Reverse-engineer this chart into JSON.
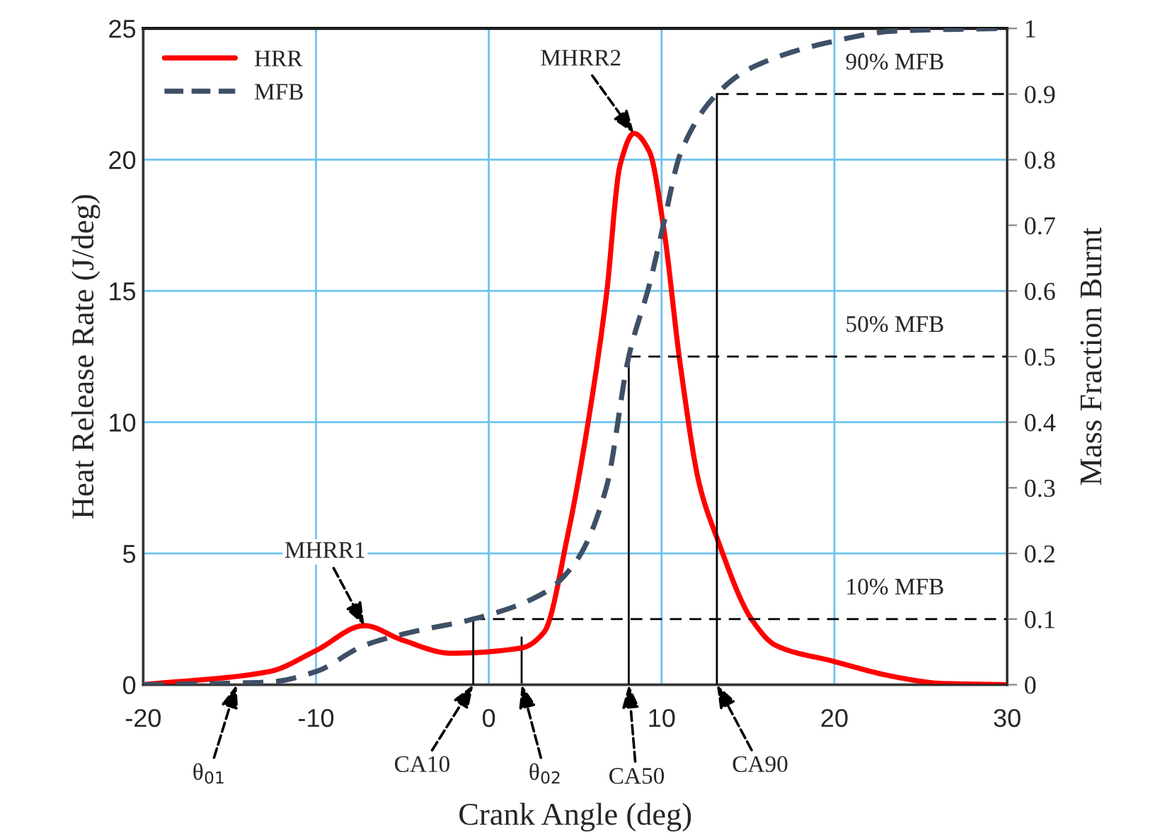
{
  "chart_data": {
    "type": "line",
    "xlabel": "Crank Angle (deg)",
    "ylabel": "Heat Release Rate (J/deg)",
    "y2label": "Mass Fraction Burnt",
    "series": [
      {
        "name": "HRR",
        "color": "#ff0000",
        "line_style": "solid",
        "x": [
          -20,
          -12.7,
          -10,
          -7.2,
          -5.0,
          -2.2,
          1.9,
          3.2,
          4.6,
          5.6,
          6.8,
          7.6,
          8.4,
          9.3,
          10.1,
          11.1,
          12.2,
          13.2,
          15.2,
          16.6,
          19.9,
          23.5,
          26.2,
          29.9
        ],
        "values": [
          0,
          0.5,
          1.3,
          2.25,
          1.7,
          1.2,
          1.4,
          2.0,
          5.8,
          9.4,
          14.8,
          19.8,
          21.0,
          20.3,
          17.5,
          12.1,
          7.6,
          5.6,
          2.5,
          1.5,
          0.9,
          0.3,
          0.05,
          0
        ]
      },
      {
        "name": "MFB",
        "color": "#3e5066",
        "line_style": "dashed",
        "axis": "y2",
        "x": [
          -20,
          -12.7,
          -10,
          -7.2,
          -4.5,
          -0.9,
          3.2,
          5.1,
          6.8,
          8.1,
          9.3,
          10.1,
          11.1,
          13.2,
          15.2,
          19.9,
          23.5,
          29.9
        ],
        "values": [
          0,
          0.004,
          0.02,
          0.06,
          0.08,
          0.1,
          0.14,
          0.19,
          0.3,
          0.5,
          0.61,
          0.7,
          0.81,
          0.9,
          0.94,
          0.98,
          0.996,
          1.0
        ]
      },
      {
        "color": "#000000",
        "line_style": "solid",
        "x": [
          1.9,
          1.9
        ],
        "values": [
          0,
          1.8
        ]
      },
      {
        "color": "#000000",
        "line_style": "solid",
        "axis": "y2",
        "x": [
          -0.9,
          -0.9
        ],
        "values": [
          0,
          0.1
        ]
      },
      {
        "color": "#000000",
        "line_style": "solid",
        "axis": "y2",
        "x": [
          8.1,
          8.1
        ],
        "values": [
          0,
          0.5
        ]
      },
      {
        "color": "#000000",
        "line_style": "solid",
        "axis": "y2",
        "x": [
          13.2,
          13.2
        ],
        "values": [
          0,
          0.9
        ]
      }
    ],
    "ref_lines": [
      {
        "axis": "y2",
        "value": 0.1,
        "label": "10% MFB",
        "color": "#000000",
        "line_style": "dashed"
      },
      {
        "axis": "y2",
        "value": 0.5,
        "label": "50% MFB",
        "color": "#000000",
        "line_style": "dashed"
      },
      {
        "axis": "y2",
        "value": 0.9,
        "label": "90% MFB",
        "color": "#000000",
        "line_style": "dashed"
      }
    ],
    "annotations": [
      {
        "text": "MHRR1",
        "x": -7.2,
        "y": 2.25
      },
      {
        "text": "MHRR2",
        "x": 8.4,
        "y": 21.0
      },
      {
        "text": "θ$_{01}$",
        "x": -14.6,
        "y": 0
      },
      {
        "text": "CA10",
        "x": -0.9,
        "y": 0
      },
      {
        "text": "θ$_{02}$",
        "x": 1.9,
        "y": 0
      },
      {
        "text": "CA50",
        "x": 8.1,
        "y": 0
      },
      {
        "text": "CA90",
        "x": 13.2,
        "y": 0
      }
    ],
    "xlim": [
      -20,
      30
    ],
    "xticks": [
      -20,
      -10,
      0,
      10,
      20,
      30
    ],
    "ylim": [
      0,
      25
    ],
    "yticks": [
      0,
      5,
      10,
      15,
      20,
      25
    ],
    "y2lim": [
      0,
      1
    ],
    "y2ticks": [
      0,
      0.1,
      0.2,
      0.3,
      0.4,
      0.5,
      0.6,
      0.7,
      0.8,
      0.9,
      1
    ],
    "grid": true,
    "legend": "top left",
    "marker": "none"
  }
}
